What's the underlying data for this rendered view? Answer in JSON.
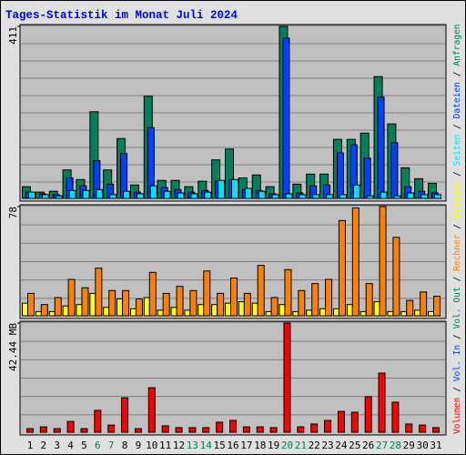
{
  "title": "Tages-Statistik im Monat Juli 2024",
  "legend_separator": " / ",
  "chart_data": [
    {
      "type": "bar",
      "ylim": [
        0,
        411
      ],
      "yticks": [
        411
      ],
      "series": [
        {
          "name": "Anfragen",
          "color": "#00805c",
          "values": [
            28,
            15,
            17,
            68,
            45,
            207,
            68,
            143,
            32,
            244,
            43,
            43,
            28,
            41,
            92,
            118,
            49,
            56,
            28,
            411,
            34,
            58,
            58,
            141,
            141,
            156,
            291,
            178,
            73,
            47,
            36
          ]
        },
        {
          "name": "Dateien",
          "color": "#0040ff",
          "values": [
            15,
            11,
            9,
            49,
            30,
            90,
            34,
            107,
            15,
            169,
            26,
            21,
            15,
            19,
            41,
            45,
            21,
            19,
            11,
            383,
            13,
            30,
            32,
            109,
            128,
            96,
            242,
            133,
            28,
            17,
            13
          ]
        },
        {
          "name": "Seiten",
          "color": "#00e0ff",
          "values": [
            15,
            9,
            6,
            19,
            19,
            21,
            9,
            17,
            11,
            30,
            17,
            13,
            11,
            15,
            43,
            45,
            24,
            17,
            9,
            11,
            9,
            9,
            9,
            9,
            32,
            6,
            15,
            6,
            13,
            9,
            9
          ]
        }
      ]
    },
    {
      "type": "bar",
      "ylim": [
        0,
        78
      ],
      "yticks": [
        78
      ],
      "series": [
        {
          "name": "Besuche",
          "color": "#ffff00",
          "values": [
            9,
            3,
            3,
            7,
            8,
            16,
            6,
            12,
            5,
            13,
            4,
            6,
            4,
            8,
            8,
            9,
            10,
            9,
            3,
            8,
            3,
            4,
            5,
            5,
            8,
            3,
            10,
            3,
            3,
            4,
            3
          ]
        },
        {
          "name": "Rechner",
          "color": "#ff8000",
          "values": [
            16,
            8,
            13,
            26,
            20,
            34,
            18,
            18,
            12,
            31,
            16,
            21,
            18,
            32,
            16,
            27,
            16,
            36,
            13,
            33,
            18,
            23,
            26,
            68,
            77,
            23,
            78,
            56,
            11,
            17,
            14
          ]
        }
      ]
    },
    {
      "type": "bar",
      "ylim": [
        0,
        42.44
      ],
      "yticks": [
        {
          "value": 42.44,
          "label": "42.44 MB"
        }
      ],
      "categories": [
        "1",
        "2",
        "3",
        "4",
        "5",
        "6",
        "7",
        "8",
        "9",
        "10",
        "11",
        "12",
        "13",
        "14",
        "15",
        "16",
        "17",
        "18",
        "19",
        "20",
        "21",
        "22",
        "23",
        "24",
        "25",
        "26",
        "27",
        "28",
        "29",
        "30",
        "31"
      ],
      "category_colors": [
        "#000000",
        "#000000",
        "#000000",
        "#000000",
        "#000000",
        "#00805c",
        "#00805c",
        "#000000",
        "#000000",
        "#000000",
        "#000000",
        "#000000",
        "#00805c",
        "#00805c",
        "#000000",
        "#000000",
        "#000000",
        "#000000",
        "#000000",
        "#00805c",
        "#00805c",
        "#000000",
        "#000000",
        "#000000",
        "#000000",
        "#000000",
        "#00805c",
        "#00805c",
        "#000000",
        "#000000",
        "#000000"
      ],
      "series": [
        {
          "name": "Vol. Out",
          "color": "#00805c"
        },
        {
          "name": "Vol. In",
          "color": "#0040ff"
        },
        {
          "name": "Volumen",
          "color": "#ff0000",
          "values": [
            1.4,
            2.1,
            1.4,
            4.2,
            1.4,
            8.5,
            2.8,
            13.4,
            1.4,
            17.3,
            2.5,
            1.8,
            1.8,
            1.8,
            3.9,
            4.6,
            2.1,
            2.1,
            1.8,
            42.44,
            2.1,
            3.2,
            4.6,
            8.1,
            7.8,
            13.8,
            23,
            11.7,
            3.2,
            2.8,
            1.8
          ]
        }
      ]
    }
  ]
}
